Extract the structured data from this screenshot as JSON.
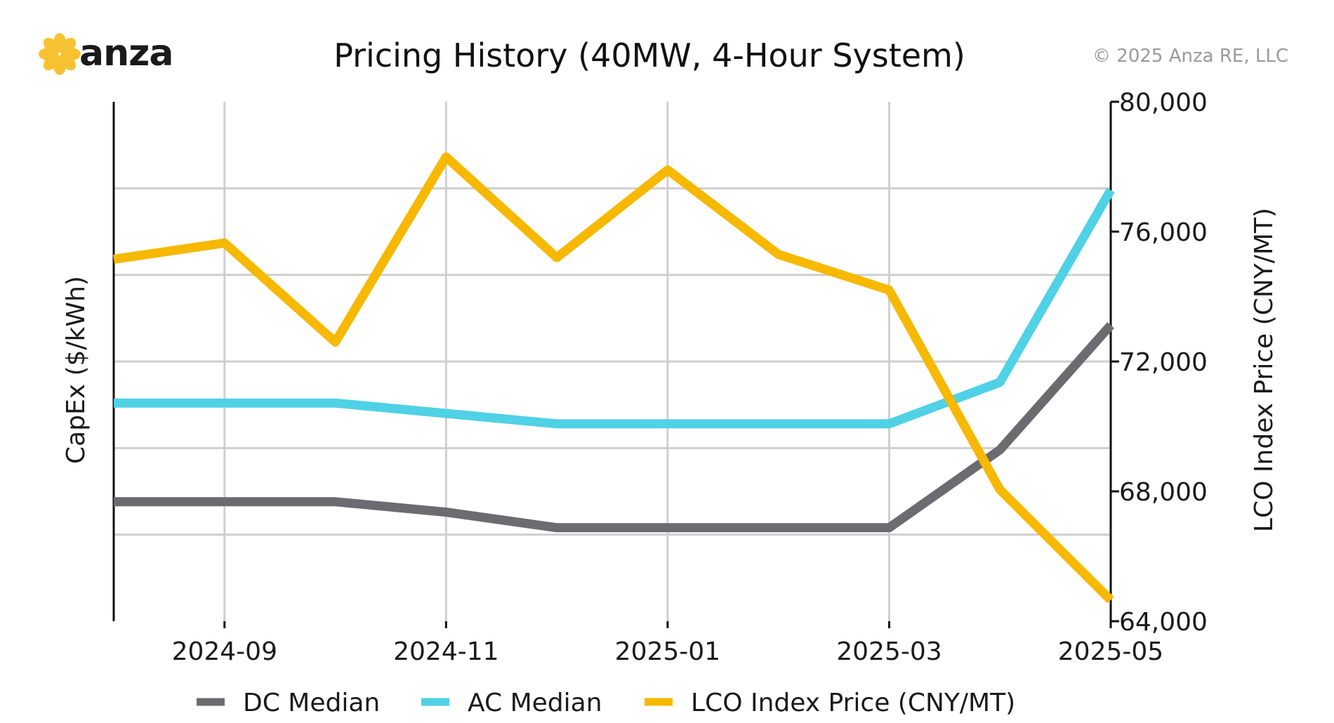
{
  "header": {
    "brand_name": "anza",
    "title": "Pricing History (40MW, 4-Hour System)",
    "copyright": "© 2025 Anza RE, LLC"
  },
  "colors": {
    "logo_petal": "#f7c232",
    "dc": "#6b6b70",
    "ac": "#4fd1e6",
    "lco": "#f7b800",
    "grid": "#cfcfcf",
    "axis": "#111111"
  },
  "chart_data": {
    "type": "line",
    "title": "Pricing History (40MW, 4-Hour System)",
    "xlabel": "",
    "ylabel_left": "CapEx ($/kWh)",
    "ylabel_right": "LCO Index Price (CNY/MT)",
    "x_ticks": [
      "2024-09",
      "2024-11",
      "2025-01",
      "2025-03",
      "2025-05"
    ],
    "x_range": [
      "2024-08",
      "2025-05"
    ],
    "x": [
      "2024-08",
      "2024-09",
      "2024-10",
      "2024-11",
      "2024-12",
      "2025-01",
      "2025-02",
      "2025-03",
      "2025-04",
      "2025-05"
    ],
    "y_left_ticks_labeled": false,
    "y_right_ticks": [
      "64,000",
      "68,000",
      "72,000",
      "76,000",
      "80,000"
    ],
    "y_right_range": [
      64000,
      80000
    ],
    "grid": true,
    "legend_position": "bottom",
    "series": [
      {
        "name": "DC Median",
        "axis": "left",
        "values": [
          0.23,
          0.23,
          0.23,
          0.21,
          0.18,
          0.18,
          0.18,
          0.18,
          0.33,
          0.57
        ]
      },
      {
        "name": "AC Median",
        "axis": "left",
        "values": [
          0.42,
          0.42,
          0.42,
          0.4,
          0.38,
          0.38,
          0.38,
          0.38,
          0.46,
          0.83
        ]
      },
      {
        "name": "LCO Index Price (CNY/MT)",
        "axis": "right",
        "values": [
          75150,
          75650,
          72600,
          78300,
          75200,
          77900,
          75300,
          74200,
          68050,
          64650
        ]
      }
    ]
  }
}
